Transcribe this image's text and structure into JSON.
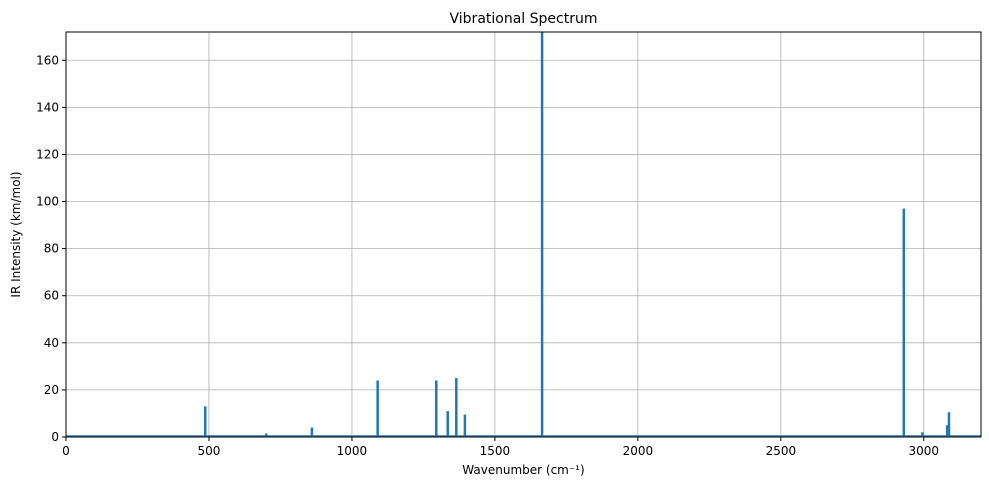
{
  "chart_data": {
    "type": "bar",
    "title": "Vibrational Spectrum",
    "xlabel": "Wavenumber (cm⁻¹)",
    "ylabel": "IR Intensity (km/mol)",
    "xlim": [
      0,
      3200
    ],
    "ylim": [
      0,
      172
    ],
    "xticks": [
      0,
      500,
      1000,
      1500,
      2000,
      2500,
      3000
    ],
    "yticks": [
      0,
      20,
      40,
      60,
      80,
      100,
      120,
      140,
      160
    ],
    "grid": true,
    "color": "#1f77b4",
    "x": [
      487,
      700,
      860,
      1090,
      1295,
      1335,
      1365,
      1395,
      1665,
      2930,
      2995,
      3082,
      3088
    ],
    "values": [
      13,
      1.5,
      4,
      24,
      24,
      11,
      25,
      9.5,
      175,
      97,
      2,
      5,
      10.5
    ]
  }
}
